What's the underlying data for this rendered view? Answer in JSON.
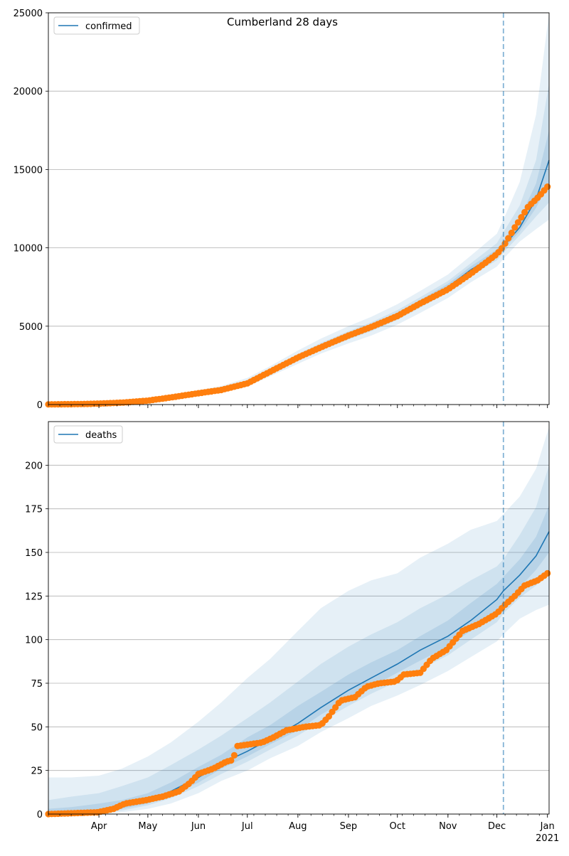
{
  "figure": {
    "title": "Cumberland 28 days"
  },
  "chart_data": [
    {
      "type": "line",
      "name": "confirmed",
      "legend": [
        "confirmed"
      ],
      "legend_position": "top-left",
      "grid": "y",
      "ylim": [
        0,
        25000
      ],
      "yticks": [
        0,
        5000,
        10000,
        15000,
        20000,
        25000
      ],
      "xlim": [
        "2020-03-01",
        "2021-01-02"
      ],
      "forecast_start": "2020-12-05",
      "colors": {
        "model": "#1f77b4",
        "observed": "#ff7f0e",
        "band": "#1f77b4",
        "grid": "#b0b0b0"
      },
      "model": {
        "x": [
          "2020-03-01",
          "2020-03-15",
          "2020-04-01",
          "2020-04-15",
          "2020-05-01",
          "2020-05-15",
          "2020-06-01",
          "2020-06-15",
          "2020-07-01",
          "2020-07-15",
          "2020-08-01",
          "2020-08-15",
          "2020-09-01",
          "2020-09-15",
          "2020-10-01",
          "2020-10-15",
          "2020-11-01",
          "2020-11-15",
          "2020-12-01",
          "2020-12-05",
          "2020-12-15",
          "2020-12-25",
          "2021-01-02"
        ],
        "y": [
          0,
          20,
          60,
          120,
          250,
          450,
          720,
          950,
          1400,
          2100,
          3000,
          3700,
          4400,
          4950,
          5700,
          6500,
          7500,
          8600,
          9600,
          10100,
          11300,
          13100,
          15600
        ]
      },
      "bands": [
        {
          "level": "outer",
          "lower": [
            0,
            0,
            20,
            60,
            150,
            300,
            550,
            750,
            1150,
            1800,
            2600,
            3250,
            3900,
            4400,
            5100,
            5850,
            6800,
            7800,
            8800,
            9300,
            10400,
            11200,
            11800
          ],
          "upper": [
            80,
            120,
            150,
            230,
            380,
            620,
            920,
            1180,
            1700,
            2450,
            3450,
            4200,
            5000,
            5600,
            6400,
            7250,
            8300,
            9500,
            10900,
            11800,
            14200,
            18500,
            25000
          ]
        },
        {
          "level": "middle",
          "lower": [
            0,
            5,
            40,
            90,
            200,
            380,
            640,
            860,
            1280,
            1950,
            2800,
            3470,
            4150,
            4680,
            5400,
            6180,
            7150,
            8200,
            9200,
            9700,
            10800,
            12000,
            12900
          ]
        },
        {
          "level": "middle-upper",
          "upper": [
            40,
            60,
            90,
            170,
            320,
            540,
            820,
            1060,
            1560,
            2280,
            3220,
            3940,
            4680,
            5250,
            6020,
            6850,
            7880,
            9020,
            10300,
            11000,
            12700,
            15600,
            20500
          ]
        },
        {
          "level": "inner",
          "lower": [
            0,
            12,
            50,
            105,
            225,
            415,
            680,
            900,
            1340,
            2030,
            2900,
            3580,
            4270,
            4810,
            5550,
            6340,
            7320,
            8400,
            9400,
            9900,
            11050,
            12550,
            14200
          ],
          "upper": [
            25,
            35,
            75,
            140,
            280,
            490,
            770,
            1010,
            1470,
            2180,
            3110,
            3820,
            4540,
            5100,
            5860,
            6680,
            7700,
            8820,
            9900,
            10450,
            11900,
            14100,
            17500
          ]
        }
      ],
      "observed": {
        "x": [
          "2020-03-01",
          "2020-03-20",
          "2020-04-01",
          "2020-04-15",
          "2020-05-01",
          "2020-05-15",
          "2020-06-01",
          "2020-06-15",
          "2020-07-01",
          "2020-07-15",
          "2020-08-01",
          "2020-08-15",
          "2020-09-01",
          "2020-09-15",
          "2020-10-01",
          "2020-10-15",
          "2020-11-01",
          "2020-11-15",
          "2020-12-01",
          "2020-12-05",
          "2020-12-12",
          "2020-12-20",
          "2020-12-27",
          "2021-01-01"
        ],
        "y": [
          10,
          30,
          60,
          120,
          250,
          450,
          720,
          930,
          1350,
          2100,
          3000,
          3650,
          4400,
          4950,
          5650,
          6450,
          7350,
          8350,
          9600,
          10100,
          11300,
          12600,
          13300,
          13900
        ]
      }
    },
    {
      "type": "line",
      "name": "deaths",
      "legend": [
        "deaths"
      ],
      "legend_position": "top-left",
      "grid": "y",
      "ylim": [
        0,
        225
      ],
      "yticks": [
        0,
        25,
        50,
        75,
        100,
        125,
        150,
        175,
        200
      ],
      "xlim": [
        "2020-03-01",
        "2021-01-02"
      ],
      "xticks": [
        "Apr",
        "May",
        "Jun",
        "Jul",
        "Aug",
        "Sep",
        "Oct",
        "Nov",
        "Dec",
        "Jan"
      ],
      "xtick_dates": [
        "2020-04-01",
        "2020-05-01",
        "2020-06-01",
        "2020-07-01",
        "2020-08-01",
        "2020-09-01",
        "2020-10-01",
        "2020-11-01",
        "2020-12-01",
        "2021-01-01"
      ],
      "year_label": "2021",
      "forecast_start": "2020-12-05",
      "colors": {
        "model": "#1f77b4",
        "observed": "#ff7f0e",
        "band": "#1f77b4",
        "grid": "#b0b0b0"
      },
      "model": {
        "x": [
          "2020-03-01",
          "2020-03-15",
          "2020-04-01",
          "2020-04-15",
          "2020-05-01",
          "2020-05-15",
          "2020-06-01",
          "2020-06-15",
          "2020-07-01",
          "2020-07-15",
          "2020-08-01",
          "2020-08-15",
          "2020-09-01",
          "2020-09-15",
          "2020-10-01",
          "2020-10-15",
          "2020-11-01",
          "2020-11-15",
          "2020-12-01",
          "2020-12-05",
          "2020-12-15",
          "2020-12-25",
          "2021-01-02"
        ],
        "y": [
          0,
          1,
          2,
          4,
          8,
          13,
          21,
          29,
          36,
          43,
          52,
          61,
          71,
          78,
          86,
          94,
          102,
          111,
          123,
          128,
          137,
          148,
          162
        ]
      },
      "bands": [
        {
          "level": "outer",
          "lower": [
            0,
            0,
            0,
            1,
            3,
            6,
            12,
            19,
            25,
            32,
            39,
            47,
            55,
            62,
            68,
            74,
            82,
            90,
            99,
            103,
            112,
            117,
            120
          ],
          "upper": [
            21,
            21,
            22,
            26,
            33,
            41,
            53,
            64,
            78,
            89,
            105,
            118,
            128,
            134,
            138,
            147,
            155,
            163,
            168,
            172,
            182,
            198,
            222
          ]
        },
        {
          "level": "middle",
          "lower": [
            0,
            0,
            1,
            2,
            5,
            9,
            16,
            23,
            30,
            37,
            45,
            53,
            62,
            69,
            76,
            83,
            91,
            100,
            110,
            115,
            124,
            131,
            137
          ]
        },
        {
          "level": "middle-upper",
          "upper": [
            8,
            10,
            12,
            16,
            21,
            28,
            37,
            45,
            55,
            64,
            76,
            86,
            96,
            103,
            110,
            118,
            126,
            134,
            142,
            146,
            160,
            176,
            200
          ]
        },
        {
          "level": "inner",
          "lower": [
            0,
            0,
            1,
            3,
            6,
            11,
            18,
            26,
            33,
            40,
            48,
            57,
            66,
            73,
            81,
            88,
            96,
            105,
            116,
            121,
            130,
            140,
            150
          ],
          "upper": [
            3,
            4,
            6,
            8,
            12,
            18,
            27,
            34,
            44,
            51,
            62,
            70,
            80,
            87,
            94,
            102,
            111,
            121,
            132,
            136,
            146,
            159,
            177
          ]
        }
      ],
      "observed": {
        "x": [
          "2020-03-01",
          "2020-03-31",
          "2020-04-10",
          "2020-04-17",
          "2020-04-30",
          "2020-05-10",
          "2020-05-20",
          "2020-05-27",
          "2020-06-01",
          "2020-06-10",
          "2020-06-18",
          "2020-06-22",
          "2020-06-25",
          "2020-07-10",
          "2020-07-17",
          "2020-07-25",
          "2020-08-05",
          "2020-08-15",
          "2020-08-20",
          "2020-08-27",
          "2020-09-05",
          "2020-09-12",
          "2020-09-20",
          "2020-09-30",
          "2020-10-05",
          "2020-10-15",
          "2020-10-22",
          "2020-10-31",
          "2020-11-10",
          "2020-11-20",
          "2020-12-01",
          "2020-12-06",
          "2020-12-12",
          "2020-12-18",
          "2020-12-26",
          "2021-01-01"
        ],
        "y": [
          0,
          1,
          3,
          6,
          8,
          10,
          13,
          18,
          23,
          26,
          30,
          31,
          39,
          41,
          44,
          48,
          50,
          51,
          56,
          65,
          67,
          73,
          75,
          76,
          80,
          81,
          89,
          94,
          105,
          109,
          115,
          120,
          125,
          131,
          134,
          138
        ]
      }
    }
  ]
}
